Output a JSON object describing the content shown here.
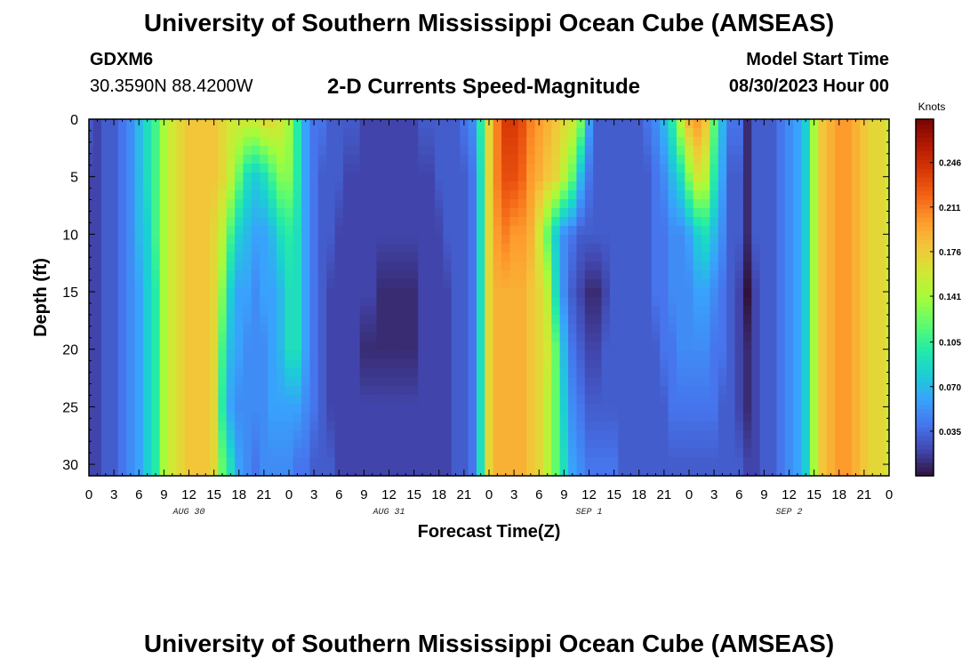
{
  "header": {
    "title": "University of Southern Mississippi Ocean Cube (AMSEAS)",
    "station_id": "GDXM6",
    "station_coords": "30.3590N  88.4200W",
    "plot_title": "2-D Currents Speed-Magnitude",
    "model_start_label": "Model Start Time",
    "model_start_value": "08/30/2023 Hour 00"
  },
  "footer": {
    "title": "University of Southern Mississippi Ocean Cube (AMSEAS)"
  },
  "chart_data": {
    "type": "heatmap",
    "title": "2-D Currents Speed-Magnitude",
    "xlabel": "Forecast Time(Z)",
    "ylabel": "Depth (ft)",
    "x_range_hours": [
      0,
      96
    ],
    "x_tick_hours": [
      0,
      3,
      6,
      9,
      12,
      15,
      18,
      21,
      24,
      27,
      30,
      33,
      36,
      39,
      42,
      45,
      48,
      51,
      54,
      57,
      60,
      63,
      66,
      69,
      72,
      75,
      78,
      81,
      84,
      87,
      90,
      93,
      96
    ],
    "x_tick_labels": [
      "0",
      "3",
      "6",
      "9",
      "12",
      "15",
      "18",
      "21",
      "0",
      "3",
      "6",
      "9",
      "12",
      "15",
      "18",
      "21",
      "0",
      "3",
      "6",
      "9",
      "12",
      "15",
      "18",
      "21",
      "0",
      "3",
      "6",
      "9",
      "12",
      "15",
      "18",
      "21",
      "0"
    ],
    "x_date_labels": [
      {
        "hour": 12,
        "label": "AUG 30"
      },
      {
        "hour": 36,
        "label": "AUG 31"
      },
      {
        "hour": 60,
        "label": "SEP 1"
      },
      {
        "hour": 84,
        "label": "SEP 2"
      }
    ],
    "y_range_ft": [
      0,
      31
    ],
    "y_tick_values": [
      0,
      5,
      10,
      15,
      20,
      25,
      30
    ],
    "y_tick_labels": [
      "0",
      "5",
      "10",
      "15",
      "20",
      "25",
      "30"
    ],
    "colorbar": {
      "label": "Knots",
      "min": 0.0,
      "max": 0.28,
      "ticks": [
        0.246,
        0.211,
        0.176,
        0.141,
        0.105,
        0.07,
        0.035
      ],
      "tick_labels": [
        "0.246",
        "0.211",
        "0.176",
        "0.141",
        "0.105",
        "0.070",
        "0.035"
      ]
    },
    "speed_profile_knots": {
      "hours": [
        0,
        1,
        2,
        3,
        4,
        5,
        6,
        7,
        8,
        9,
        10,
        11,
        12,
        13,
        14,
        15,
        16,
        17,
        18,
        19,
        20,
        21,
        22,
        23,
        24,
        25,
        26,
        27,
        28,
        29,
        30,
        31,
        32,
        33,
        34,
        35,
        36,
        37,
        38,
        39,
        40,
        41,
        42,
        43,
        44,
        45,
        46,
        47,
        48,
        49,
        50,
        51,
        52,
        53,
        54,
        55,
        56,
        57,
        58,
        59,
        60,
        61,
        62,
        63,
        64,
        65,
        66,
        67,
        68,
        69,
        70,
        71,
        72,
        73,
        74,
        75,
        76,
        77,
        78,
        79,
        80,
        81,
        82,
        83,
        84,
        85,
        86,
        87,
        88,
        89,
        90,
        91,
        92,
        93,
        94,
        95,
        96
      ],
      "depths_ft": [
        0,
        5,
        10,
        15,
        20,
        25,
        30
      ],
      "values": [
        [
          0.03,
          0.02,
          0.02,
          0.02,
          0.02,
          0.02,
          0.02
        ],
        [
          0.02,
          0.02,
          0.02,
          0.02,
          0.02,
          0.02,
          0.02
        ],
        [
          0.03,
          0.03,
          0.03,
          0.03,
          0.03,
          0.03,
          0.03
        ],
        [
          0.03,
          0.03,
          0.03,
          0.03,
          0.03,
          0.03,
          0.03
        ],
        [
          0.04,
          0.04,
          0.04,
          0.04,
          0.04,
          0.04,
          0.04
        ],
        [
          0.05,
          0.05,
          0.05,
          0.05,
          0.05,
          0.05,
          0.05
        ],
        [
          0.07,
          0.07,
          0.07,
          0.06,
          0.06,
          0.06,
          0.06
        ],
        [
          0.09,
          0.09,
          0.08,
          0.08,
          0.08,
          0.08,
          0.08
        ],
        [
          0.11,
          0.11,
          0.11,
          0.1,
          0.1,
          0.1,
          0.1
        ],
        [
          0.14,
          0.14,
          0.14,
          0.14,
          0.14,
          0.14,
          0.14
        ],
        [
          0.16,
          0.16,
          0.16,
          0.16,
          0.16,
          0.16,
          0.16
        ],
        [
          0.17,
          0.17,
          0.17,
          0.17,
          0.17,
          0.17,
          0.17
        ],
        [
          0.18,
          0.18,
          0.18,
          0.18,
          0.18,
          0.18,
          0.18
        ],
        [
          0.18,
          0.18,
          0.18,
          0.18,
          0.18,
          0.18,
          0.18
        ],
        [
          0.18,
          0.18,
          0.18,
          0.18,
          0.18,
          0.18,
          0.18
        ],
        [
          0.18,
          0.18,
          0.17,
          0.17,
          0.17,
          0.17,
          0.17
        ],
        [
          0.17,
          0.17,
          0.15,
          0.13,
          0.11,
          0.1,
          0.12
        ],
        [
          0.16,
          0.15,
          0.11,
          0.08,
          0.07,
          0.06,
          0.09
        ],
        [
          0.16,
          0.12,
          0.08,
          0.06,
          0.06,
          0.05,
          0.06
        ],
        [
          0.16,
          0.09,
          0.07,
          0.06,
          0.05,
          0.05,
          0.05
        ],
        [
          0.16,
          0.08,
          0.06,
          0.05,
          0.05,
          0.05,
          0.04
        ],
        [
          0.17,
          0.09,
          0.06,
          0.06,
          0.05,
          0.05,
          0.05
        ],
        [
          0.17,
          0.11,
          0.07,
          0.06,
          0.06,
          0.06,
          0.05
        ],
        [
          0.16,
          0.13,
          0.09,
          0.07,
          0.07,
          0.06,
          0.05
        ],
        [
          0.14,
          0.13,
          0.1,
          0.09,
          0.09,
          0.06,
          0.05
        ],
        [
          0.1,
          0.1,
          0.09,
          0.09,
          0.09,
          0.06,
          0.04
        ],
        [
          0.06,
          0.06,
          0.06,
          0.06,
          0.06,
          0.05,
          0.04
        ],
        [
          0.04,
          0.04,
          0.04,
          0.04,
          0.04,
          0.04,
          0.03
        ],
        [
          0.04,
          0.03,
          0.03,
          0.03,
          0.03,
          0.03,
          0.03
        ],
        [
          0.03,
          0.03,
          0.03,
          0.02,
          0.02,
          0.02,
          0.03
        ],
        [
          0.03,
          0.03,
          0.02,
          0.02,
          0.02,
          0.02,
          0.02
        ],
        [
          0.03,
          0.02,
          0.02,
          0.02,
          0.02,
          0.02,
          0.02
        ],
        [
          0.03,
          0.02,
          0.02,
          0.02,
          0.02,
          0.02,
          0.02
        ],
        [
          0.02,
          0.02,
          0.02,
          0.02,
          0.01,
          0.02,
          0.02
        ],
        [
          0.02,
          0.02,
          0.02,
          0.02,
          0.01,
          0.02,
          0.02
        ],
        [
          0.02,
          0.02,
          0.02,
          0.01,
          0.01,
          0.02,
          0.02
        ],
        [
          0.02,
          0.02,
          0.02,
          0.01,
          0.01,
          0.02,
          0.02
        ],
        [
          0.02,
          0.02,
          0.02,
          0.01,
          0.01,
          0.02,
          0.02
        ],
        [
          0.02,
          0.02,
          0.02,
          0.01,
          0.01,
          0.02,
          0.02
        ],
        [
          0.02,
          0.02,
          0.02,
          0.01,
          0.01,
          0.02,
          0.02
        ],
        [
          0.03,
          0.02,
          0.02,
          0.02,
          0.02,
          0.02,
          0.02
        ],
        [
          0.03,
          0.02,
          0.02,
          0.02,
          0.02,
          0.02,
          0.02
        ],
        [
          0.03,
          0.03,
          0.02,
          0.02,
          0.02,
          0.02,
          0.02
        ],
        [
          0.03,
          0.03,
          0.03,
          0.02,
          0.02,
          0.02,
          0.02
        ],
        [
          0.03,
          0.03,
          0.03,
          0.03,
          0.03,
          0.03,
          0.03
        ],
        [
          0.04,
          0.03,
          0.03,
          0.03,
          0.03,
          0.03,
          0.03
        ],
        [
          0.05,
          0.04,
          0.04,
          0.04,
          0.04,
          0.04,
          0.04
        ],
        [
          0.1,
          0.09,
          0.09,
          0.09,
          0.09,
          0.09,
          0.09
        ],
        [
          0.17,
          0.17,
          0.17,
          0.17,
          0.17,
          0.17,
          0.17
        ],
        [
          0.21,
          0.21,
          0.2,
          0.19,
          0.19,
          0.19,
          0.19
        ],
        [
          0.24,
          0.23,
          0.21,
          0.19,
          0.19,
          0.19,
          0.19
        ],
        [
          0.24,
          0.23,
          0.2,
          0.19,
          0.19,
          0.19,
          0.19
        ],
        [
          0.23,
          0.22,
          0.2,
          0.19,
          0.19,
          0.19,
          0.19
        ],
        [
          0.21,
          0.2,
          0.19,
          0.18,
          0.18,
          0.18,
          0.18
        ],
        [
          0.2,
          0.19,
          0.16,
          0.17,
          0.17,
          0.17,
          0.17
        ],
        [
          0.19,
          0.18,
          0.12,
          0.15,
          0.16,
          0.15,
          0.15
        ],
        [
          0.18,
          0.17,
          0.08,
          0.09,
          0.12,
          0.12,
          0.12
        ],
        [
          0.17,
          0.15,
          0.05,
          0.05,
          0.07,
          0.08,
          0.09
        ],
        [
          0.16,
          0.12,
          0.04,
          0.03,
          0.04,
          0.05,
          0.06
        ],
        [
          0.13,
          0.07,
          0.03,
          0.02,
          0.03,
          0.04,
          0.05
        ],
        [
          0.06,
          0.04,
          0.03,
          0.01,
          0.02,
          0.03,
          0.04
        ],
        [
          0.03,
          0.03,
          0.03,
          0.01,
          0.02,
          0.03,
          0.04
        ],
        [
          0.03,
          0.03,
          0.03,
          0.02,
          0.03,
          0.03,
          0.04
        ],
        [
          0.03,
          0.03,
          0.03,
          0.03,
          0.03,
          0.03,
          0.04
        ],
        [
          0.03,
          0.03,
          0.03,
          0.03,
          0.03,
          0.03,
          0.03
        ],
        [
          0.03,
          0.03,
          0.03,
          0.03,
          0.03,
          0.03,
          0.03
        ],
        [
          0.03,
          0.03,
          0.03,
          0.03,
          0.03,
          0.03,
          0.03
        ],
        [
          0.04,
          0.03,
          0.03,
          0.03,
          0.03,
          0.03,
          0.03
        ],
        [
          0.05,
          0.04,
          0.04,
          0.04,
          0.03,
          0.03,
          0.03
        ],
        [
          0.07,
          0.05,
          0.04,
          0.04,
          0.04,
          0.03,
          0.03
        ],
        [
          0.1,
          0.07,
          0.05,
          0.05,
          0.04,
          0.04,
          0.03
        ],
        [
          0.15,
          0.09,
          0.05,
          0.05,
          0.05,
          0.04,
          0.03
        ],
        [
          0.19,
          0.13,
          0.06,
          0.05,
          0.05,
          0.04,
          0.03
        ],
        [
          0.2,
          0.16,
          0.08,
          0.06,
          0.05,
          0.04,
          0.03
        ],
        [
          0.18,
          0.15,
          0.09,
          0.06,
          0.05,
          0.04,
          0.03
        ],
        [
          0.12,
          0.1,
          0.07,
          0.05,
          0.04,
          0.04,
          0.03
        ],
        [
          0.07,
          0.06,
          0.05,
          0.04,
          0.04,
          0.03,
          0.03
        ],
        [
          0.04,
          0.03,
          0.03,
          0.03,
          0.03,
          0.03,
          0.03
        ],
        [
          0.04,
          0.03,
          0.03,
          0.02,
          0.02,
          0.02,
          0.03
        ],
        [
          0.01,
          0.01,
          0.01,
          0.0,
          0.01,
          0.01,
          0.02
        ],
        [
          0.03,
          0.03,
          0.03,
          0.02,
          0.02,
          0.02,
          0.02
        ],
        [
          0.03,
          0.03,
          0.03,
          0.03,
          0.03,
          0.03,
          0.03
        ],
        [
          0.03,
          0.03,
          0.03,
          0.03,
          0.03,
          0.03,
          0.03
        ],
        [
          0.04,
          0.04,
          0.04,
          0.04,
          0.04,
          0.04,
          0.04
        ],
        [
          0.05,
          0.05,
          0.05,
          0.05,
          0.05,
          0.05,
          0.05
        ],
        [
          0.06,
          0.06,
          0.06,
          0.06,
          0.06,
          0.06,
          0.06
        ],
        [
          0.08,
          0.08,
          0.08,
          0.08,
          0.08,
          0.08,
          0.08
        ],
        [
          0.14,
          0.14,
          0.14,
          0.14,
          0.14,
          0.14,
          0.14
        ],
        [
          0.18,
          0.18,
          0.18,
          0.18,
          0.18,
          0.18,
          0.18
        ],
        [
          0.19,
          0.19,
          0.19,
          0.19,
          0.19,
          0.19,
          0.19
        ],
        [
          0.2,
          0.2,
          0.2,
          0.2,
          0.2,
          0.2,
          0.2
        ],
        [
          0.2,
          0.2,
          0.2,
          0.2,
          0.2,
          0.2,
          0.2
        ],
        [
          0.19,
          0.19,
          0.19,
          0.19,
          0.19,
          0.19,
          0.19
        ],
        [
          0.18,
          0.18,
          0.18,
          0.18,
          0.18,
          0.18,
          0.18
        ],
        [
          0.17,
          0.17,
          0.17,
          0.17,
          0.17,
          0.17,
          0.17
        ],
        [
          0.17,
          0.17,
          0.17,
          0.17,
          0.17,
          0.17,
          0.17
        ],
        [
          0.16,
          0.16,
          0.16,
          0.16,
          0.16,
          0.16,
          0.16
        ]
      ]
    },
    "colors": {
      "frame": "#000000",
      "colormap": [
        "#30123b",
        "#4145ab",
        "#4675ed",
        "#39a2fc",
        "#1bcfd4",
        "#24eca6",
        "#61fc6c",
        "#a4fc3b",
        "#d1e834",
        "#f3c63a",
        "#fe9b2d",
        "#f36315",
        "#d93806",
        "#b11901",
        "#7a0402"
      ]
    }
  }
}
